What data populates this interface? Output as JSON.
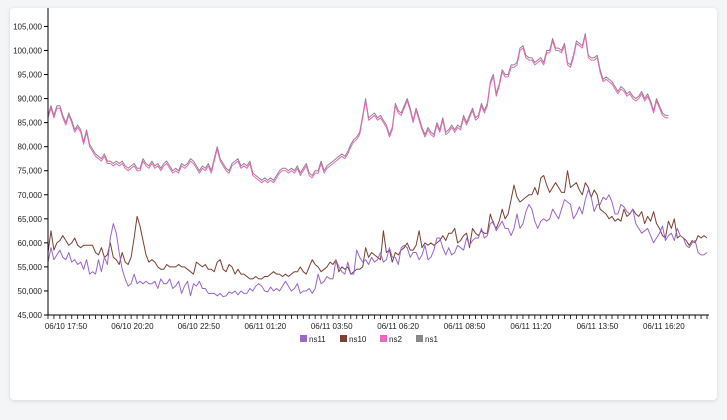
{
  "chart_data": {
    "type": "line",
    "title": "",
    "xlabel": "",
    "ylabel": "",
    "ylim": [
      45000,
      108000
    ],
    "y_ticks": [
      45000,
      50000,
      55000,
      60000,
      65000,
      70000,
      75000,
      80000,
      85000,
      90000,
      95000,
      100000,
      105000
    ],
    "y_tick_labels": [
      "45,000",
      "50,000",
      "55,000",
      "60,000",
      "65,000",
      "70,000",
      "75,000",
      "80,000",
      "85,000",
      "90,000",
      "95,000",
      "100,000",
      "105,000"
    ],
    "x_tick_labels": [
      "06/10 17:50",
      "06/10 20:20",
      "06/10 22:50",
      "06/11 01:20",
      "06/11 03:50",
      "06/11 06:20",
      "06/11 08:50",
      "06/11 11:20",
      "06/11 13:50",
      "06/11 16:20"
    ],
    "x_points_between_labels": 15,
    "legend_position": "bottom-center",
    "series": [
      {
        "name": "ns11",
        "color": "#9966cc",
        "values": [
          56000,
          59000,
          56500,
          57500,
          58500,
          57000,
          56500,
          58000,
          56000,
          56500,
          55500,
          56000,
          54500,
          56500,
          53500,
          54000,
          53500,
          56500,
          54000,
          57000,
          55500,
          61000,
          64000,
          62000,
          58000,
          54500,
          52500,
          51000,
          51500,
          53500,
          51500,
          52000,
          51500,
          52000,
          51500,
          51500,
          52000,
          50500,
          52500,
          51500,
          51500,
          52500,
          50500,
          51000,
          52000,
          49500,
          51000,
          52000,
          49000,
          51500,
          51000,
          52000,
          50500,
          50500,
          49500,
          49500,
          49500,
          49000,
          49500,
          48800,
          49000,
          49800,
          49500,
          50000,
          49200,
          50000,
          49500,
          49500,
          50500,
          50000,
          51000,
          51500,
          51000,
          50000,
          49800,
          50800,
          50000,
          50500,
          50000,
          51000,
          52000,
          51000,
          50000,
          50500,
          51500,
          49500,
          50000,
          50000,
          50500,
          49500,
          50500,
          53500,
          51500,
          52000,
          53000,
          52500,
          52500,
          56500,
          55000,
          54000,
          53500,
          56000,
          53500,
          53500,
          58500,
          57000,
          56000,
          56500,
          55500,
          57000,
          56000,
          56500,
          58000,
          56000,
          56500,
          59000,
          57000,
          57000,
          55500,
          59000,
          59500,
          59000,
          57000,
          58000,
          58000,
          56500,
          57500,
          59500,
          56500,
          57000,
          58500,
          61000,
          61000,
          59000,
          57500,
          59000,
          57500,
          58000,
          59500,
          59000,
          58500,
          61000,
          59500,
          60500,
          61000,
          61000,
          63000,
          61000,
          61500,
          64000,
          64500,
          62500,
          63500,
          64500,
          63000,
          63000,
          61500,
          63000,
          66000,
          63000,
          64000,
          66500,
          68000,
          67000,
          64500,
          63000,
          64500,
          65000,
          64500,
          65000,
          67000,
          66000,
          65000,
          67000,
          69000,
          68500,
          68000,
          65000,
          66000,
          67500,
          66000,
          69000,
          71000,
          69500,
          66500,
          68000,
          68000,
          69500,
          69000,
          70000,
          68500,
          66000,
          66000,
          68000,
          67500,
          66500,
          66000,
          67000,
          64000,
          63000,
          62000,
          62500,
          63000,
          61500,
          60000,
          61000,
          62000,
          63500,
          60500,
          61500,
          62000,
          60500,
          63000,
          61500,
          61000,
          59500,
          59000,
          60000,
          60500,
          58000,
          57500,
          57500,
          58000
        ]
      },
      {
        "name": "ns10",
        "color": "#7a4032",
        "values": [
          58000,
          62500,
          58500,
          60000,
          60500,
          61500,
          60500,
          59500,
          60000,
          61000,
          59500,
          59000,
          59500,
          59500,
          59500,
          59500,
          58000,
          57500,
          59000,
          57000,
          57500,
          60000,
          57000,
          56500,
          55500,
          58000,
          56000,
          55500,
          57000,
          61000,
          65500,
          63500,
          60500,
          57500,
          56000,
          56500,
          56000,
          55000,
          54500,
          54500,
          55500,
          55000,
          55000,
          55000,
          55500,
          55000,
          55000,
          54500,
          54000,
          53500,
          56000,
          55500,
          55000,
          55500,
          54500,
          54500,
          54000,
          56000,
          56500,
          54500,
          54000,
          55500,
          55000,
          53500,
          54500,
          53500,
          53500,
          53000,
          52500,
          52500,
          53000,
          52500,
          52500,
          53000,
          53000,
          53500,
          54000,
          53500,
          53500,
          53000,
          53500,
          53000,
          53500,
          54000,
          54000,
          55000,
          54000,
          53500,
          55000,
          56500,
          55500,
          55000,
          54000,
          54500,
          55000,
          56000,
          55500,
          56500,
          54000,
          55000,
          54500,
          55000,
          53500,
          54000,
          54500,
          54500,
          55000,
          59000,
          57000,
          58000,
          57500,
          57000,
          56500,
          62500,
          58000,
          58500,
          56000,
          58000,
          57500,
          58500,
          59000,
          60000,
          58500,
          58500,
          59500,
          62500,
          59000,
          60000,
          59500,
          60000,
          59500,
          60000,
          60500,
          61500,
          60500,
          62000,
          62000,
          63000,
          60000,
          60500,
          61500,
          62000,
          59000,
          63000,
          62000,
          61500,
          62500,
          62000,
          62000,
          66000,
          64000,
          63000,
          64500,
          67000,
          65000,
          66000,
          69000,
          72000,
          69500,
          68500,
          69000,
          69500,
          70000,
          70000,
          71500,
          70000,
          73500,
          74000,
          72000,
          70500,
          71500,
          72500,
          71500,
          70500,
          70500,
          75000,
          71500,
          72000,
          72500,
          71000,
          70000,
          72500,
          71500,
          69500,
          71000,
          70000,
          67000,
          66500,
          66000,
          65000,
          65500,
          64500,
          65000,
          64500,
          67000,
          65500,
          66000,
          67000,
          66000,
          65500,
          66500,
          64000,
          65500,
          64500,
          66500,
          64000,
          63000,
          61500,
          61000,
          64500,
          63000,
          65000,
          61000,
          61500,
          61000,
          60500,
          59500,
          60500,
          60000,
          61500,
          61000,
          61500,
          61000
        ]
      },
      {
        "name": "ns2",
        "color": "#ee66bb",
        "values": [
          86000,
          88000,
          86000,
          88000,
          88000,
          86000,
          84500,
          86500,
          85000,
          83000,
          84000,
          83000,
          80500,
          83000,
          80000,
          79000,
          78000,
          77500,
          77000,
          78000,
          76500,
          76500,
          76000,
          76500,
          76000,
          76500,
          75500,
          75000,
          75500,
          76000,
          75000,
          75000,
          77000,
          76000,
          75500,
          76500,
          75500,
          76000,
          75000,
          76000,
          76500,
          75500,
          74500,
          75000,
          74500,
          76000,
          75500,
          76000,
          77000,
          76500,
          75500,
          74500,
          75500,
          75000,
          76000,
          74500,
          77000,
          79500,
          77000,
          76000,
          75000,
          74500,
          76000,
          76500,
          77000,
          75500,
          76000,
          75500,
          76500,
          74000,
          73500,
          73000,
          72500,
          73000,
          72500,
          73000,
          72500,
          73500,
          74500,
          75000,
          75000,
          74500,
          75000,
          74500,
          75500,
          74000,
          75000,
          76000,
          74000,
          73500,
          74500,
          74500,
          76500,
          74500,
          75500,
          76000,
          76500,
          77000,
          77500,
          78000,
          77500,
          78500,
          80000,
          81000,
          81500,
          82500,
          86000,
          89500,
          85500,
          86000,
          86500,
          85500,
          86000,
          85000,
          84000,
          82000,
          83500,
          88500,
          87000,
          86500,
          88000,
          89500,
          87500,
          85000,
          87500,
          85500,
          83500,
          82000,
          83500,
          82500,
          82000,
          84500,
          83000,
          85500,
          82500,
          83000,
          84000,
          83000,
          84000,
          83500,
          86000,
          84500,
          86000,
          87500,
          85500,
          86000,
          88500,
          87000,
          88500,
          93000,
          94500,
          90500,
          92500,
          95500,
          94500,
          94500,
          96500,
          96500,
          97000,
          100000,
          100500,
          98500,
          98000,
          98000,
          97000,
          97500,
          98000,
          97000,
          99500,
          99500,
          102000,
          100000,
          100000,
          99500,
          101000,
          97000,
          96500,
          98500,
          101500,
          101000,
          100500,
          103000,
          98500,
          98000,
          98000,
          98500,
          95500,
          93500,
          94000,
          93500,
          93000,
          92000,
          91000,
          92000,
          91500,
          90500,
          91000,
          90000,
          89500,
          90000,
          91000,
          89500,
          90500,
          89000,
          87000,
          89500,
          88000,
          86500,
          86000,
          86000
        ]
      },
      {
        "name": "ns1",
        "color": "#888888",
        "values": [
          86500,
          88500,
          86500,
          88500,
          88500,
          86500,
          85000,
          87000,
          85500,
          83500,
          84500,
          83500,
          81000,
          83500,
          80500,
          79500,
          78500,
          78000,
          77500,
          78500,
          77000,
          77000,
          76500,
          77000,
          76500,
          77000,
          76000,
          75500,
          76000,
          76500,
          75500,
          75500,
          77500,
          76500,
          76000,
          77000,
          76000,
          76500,
          75500,
          76500,
          77000,
          76000,
          75000,
          75500,
          75000,
          76500,
          76000,
          76500,
          77500,
          77000,
          76000,
          75000,
          76000,
          75500,
          76500,
          75000,
          77500,
          80000,
          77500,
          76500,
          75500,
          75000,
          76500,
          77000,
          77500,
          76000,
          76500,
          76000,
          77000,
          74500,
          74000,
          73500,
          73000,
          73500,
          73000,
          73500,
          73000,
          74000,
          75000,
          75500,
          75500,
          75000,
          75500,
          75000,
          76000,
          74500,
          75500,
          76500,
          74500,
          74000,
          75000,
          75000,
          77000,
          75000,
          76000,
          76500,
          77000,
          77500,
          78000,
          78500,
          78000,
          79000,
          80500,
          81500,
          82000,
          83000,
          86500,
          90000,
          86000,
          86500,
          87000,
          86000,
          86500,
          85500,
          84500,
          82500,
          84000,
          89000,
          87500,
          87000,
          88500,
          90000,
          88000,
          85500,
          88000,
          86000,
          84000,
          82500,
          84000,
          83000,
          82500,
          85000,
          83500,
          86000,
          83000,
          83500,
          84500,
          83500,
          84500,
          84000,
          86500,
          85000,
          86500,
          88000,
          86000,
          86500,
          89000,
          87500,
          89000,
          93500,
          95000,
          91000,
          93000,
          96000,
          95000,
          95000,
          97000,
          97000,
          97500,
          100500,
          101000,
          99000,
          98500,
          98500,
          97500,
          98000,
          98500,
          97500,
          100000,
          100000,
          102500,
          100500,
          100500,
          100000,
          101500,
          97500,
          97000,
          99000,
          102000,
          101500,
          101000,
          103500,
          99000,
          98500,
          98500,
          99000,
          96000,
          94000,
          94500,
          94000,
          93500,
          92500,
          91500,
          92500,
          92000,
          91000,
          91500,
          90500,
          90000,
          90500,
          91500,
          90000,
          91000,
          89500,
          87500,
          90000,
          88500,
          87000,
          86500,
          86500
        ]
      }
    ]
  }
}
